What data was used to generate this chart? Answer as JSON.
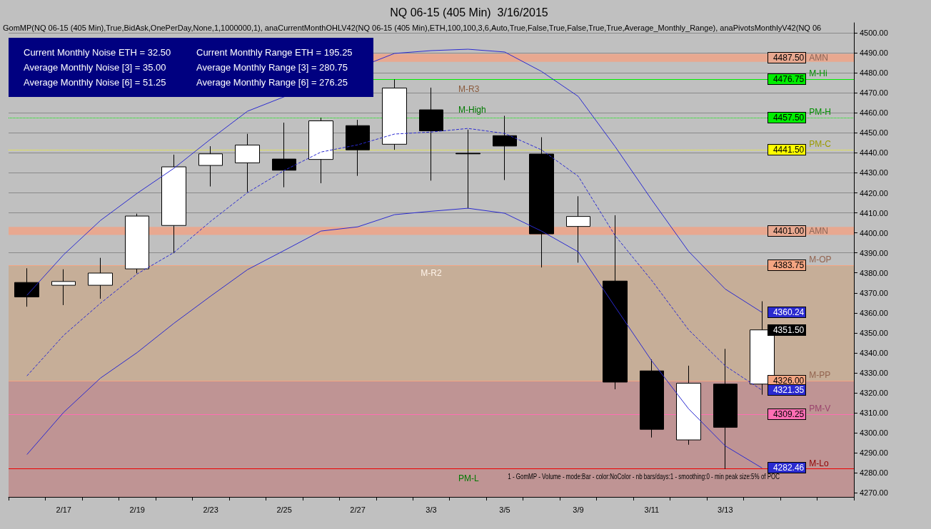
{
  "chart_data": {
    "type": "candlestick",
    "title": "NQ 06-15 (405 Min)  3/16/2015",
    "categories": [
      null,
      "2/17",
      null,
      "2/19",
      null,
      "2/23",
      null,
      "2/25",
      null,
      "2/27",
      null,
      "3/3",
      null,
      "3/5",
      null,
      "3/9",
      null,
      "3/11",
      null,
      "3/13",
      null
    ],
    "ohlc": [
      [
        4375.2,
        4382.3,
        4363.1,
        4368.0
      ],
      [
        4373.8,
        4381.8,
        4363.9,
        4375.7
      ],
      [
        4373.8,
        4387.5,
        4367.1,
        4379.9
      ],
      [
        4382.0,
        4409.6,
        4379.8,
        4408.4
      ],
      [
        4403.7,
        4439.1,
        4389.8,
        4433.0
      ],
      [
        4433.7,
        4443.3,
        4423.2,
        4439.5
      ],
      [
        4435.0,
        4449.5,
        4420.4,
        4443.9
      ],
      [
        4436.9,
        4455.1,
        4422.8,
        4431.3
      ],
      [
        4436.7,
        4457.5,
        4424.8,
        4456.0
      ],
      [
        4453.6,
        4456.5,
        4428.5,
        4441.5
      ],
      [
        4444.3,
        4476.75,
        4441.5,
        4472.4
      ],
      [
        4461.5,
        4472.6,
        4426.1,
        4451.0
      ],
      [
        4439.8,
        4451.6,
        4412.2,
        4439.5
      ],
      [
        4448.6,
        4458.5,
        4426.4,
        4443.4
      ],
      [
        4439.4,
        4447.8,
        4382.7,
        4399.5
      ],
      [
        4403.2,
        4418.3,
        4385.1,
        4408.2
      ],
      [
        4375.9,
        4408.8,
        4321.8,
        4325.4
      ],
      [
        4331.0,
        4336.7,
        4297.7,
        4301.8
      ],
      [
        4296.5,
        4333.6,
        4294.1,
        4324.8
      ],
      [
        4324.4,
        4342.0,
        4282.0,
        4302.8
      ],
      [
        4324.4,
        4365.8,
        4319.1,
        4351.5
      ]
    ],
    "series": [
      {
        "type": "line",
        "color": "#2a2ad0",
        "line_style": "solid",
        "values": [
          4368.8,
          4389.1,
          4406.2,
          4419.8,
          4432.3,
          4446.9,
          4460.8,
          null,
          null,
          null,
          4489.7,
          4491.1,
          4491.8,
          4490.4,
          4480.7,
          4468.2,
          4443.2,
          4416.5,
          4390.8,
          4371.9,
          4360.24
        ],
        "value_labels": [
          null,
          null,
          null,
          null,
          null,
          null,
          null,
          null,
          null,
          null,
          null,
          null,
          null,
          null,
          null,
          null,
          null,
          null,
          null,
          null,
          "4360.24"
        ]
      },
      {
        "type": "line",
        "color": "#2a2ad0",
        "line_style": "dashed",
        "values": [
          4328.5,
          4348.8,
          4364.8,
          4379.5,
          4390.2,
          4405.8,
          4420.1,
          4431.2,
          4440.4,
          4444.0,
          4449.4,
          4450.4,
          4452.2,
          4449.7,
          4441.5,
          4428.3,
          4398.7,
          4376.2,
          4351.6,
          4333.5,
          4321.35
        ],
        "value_labels": [
          null,
          null,
          null,
          null,
          null,
          null,
          null,
          null,
          null,
          null,
          null,
          null,
          null,
          null,
          null,
          null,
          null,
          null,
          null,
          null,
          "4321.35"
        ]
      },
      {
        "type": "line",
        "color": "#2a2ad0",
        "line_style": "solid",
        "values": [
          4289.2,
          4310.3,
          4327.4,
          4340.2,
          4354.8,
          4368.4,
          4381.6,
          4391.2,
          4400.9,
          4403.0,
          4409.1,
          4410.8,
          4412.3,
          4409.8,
          4400.9,
          4390.5,
          4363.1,
          4336.0,
          4312.1,
          4293.5,
          4282.46
        ],
        "value_labels": [
          null,
          null,
          null,
          null,
          null,
          null,
          null,
          null,
          null,
          null,
          null,
          null,
          null,
          null,
          null,
          null,
          null,
          null,
          null,
          null,
          "4282.46"
        ]
      }
    ],
    "marker": "none",
    "grid": "y",
    "ylim": [
      4268,
      4505
    ],
    "yticks": [
      {
        "value": 4270,
        "label": "4270.00"
      },
      {
        "value": 4280,
        "label": "4280.00"
      },
      {
        "value": 4290,
        "label": "4290.00"
      },
      {
        "value": 4300,
        "label": "4300.00"
      },
      {
        "value": 4310,
        "label": "4310.00"
      },
      {
        "value": 4320,
        "label": "4320.00"
      },
      {
        "value": 4330,
        "label": "4330.00"
      },
      {
        "value": 4340,
        "label": "4340.00"
      },
      {
        "value": 4350,
        "label": "4350.00"
      },
      {
        "value": 4360,
        "label": "4360.00"
      },
      {
        "value": 4370,
        "label": "4370.00"
      },
      {
        "value": 4380,
        "label": "4380.00"
      },
      {
        "value": 4390,
        "label": "4390.00"
      },
      {
        "value": 4400,
        "label": "4400.00"
      },
      {
        "value": 4410,
        "label": "4410.00"
      },
      {
        "value": 4420,
        "label": "4420.00"
      },
      {
        "value": 4430,
        "label": "4430.00"
      },
      {
        "value": 4440,
        "label": "4440.00"
      },
      {
        "value": 4450,
        "label": "4450.00"
      },
      {
        "value": 4460,
        "label": "4460.00"
      },
      {
        "value": 4470,
        "label": "4470.00"
      },
      {
        "value": 4480,
        "label": "4480.00"
      },
      {
        "value": 4490,
        "label": "4490.00"
      },
      {
        "value": 4500,
        "label": "4500.00"
      }
    ],
    "bands": [
      {
        "axis": "y",
        "from": 4485.5,
        "to": 4489.5,
        "label": "AMN",
        "color": "#e8a890"
      },
      {
        "axis": "y",
        "from": 4399.0,
        "to": 4403.0,
        "label": "AMN",
        "color": "#e8a890"
      },
      {
        "axis": "y",
        "from": 4326.0,
        "to": 4383.75,
        "label": "M-R2",
        "color": "#c6ae98"
      },
      {
        "axis": "y",
        "from": 4268,
        "to": 4326.0,
        "label": null,
        "color": "#bf9494"
      }
    ],
    "ref_lines": [
      {
        "axis": "y",
        "value": 4476.75,
        "label": "M-Hi",
        "color": "#00ee00",
        "line_style": "solid"
      },
      {
        "axis": "y",
        "value": 4457.5,
        "label": "PM-H",
        "color": "#00ee00",
        "line_style": "dotted"
      },
      {
        "axis": "y",
        "value": 4441.5,
        "label": "PM-C",
        "color": "#ffff00",
        "line_style": "dotted"
      },
      {
        "axis": "y",
        "value": 4383.75,
        "label": "M-OP",
        "color": "#f4a582",
        "line_style": "solid"
      },
      {
        "axis": "y",
        "value": 4326.0,
        "label": "M-PP",
        "color": "#f4a582",
        "line_style": "solid"
      },
      {
        "axis": "y",
        "value": 4309.25,
        "label": "PM-V",
        "color": "#ff6eb4",
        "line_style": "solid"
      },
      {
        "axis": "y",
        "value": 4282.0,
        "label": "M-Lo",
        "color": "#ee0000",
        "line_style": "solid"
      }
    ],
    "annotations": [
      "GomMP(NQ 06-15 (405 Min),True,BidAsk,OnePerDay,None,1,1000000,1), anaCurrentMonthOHLV42(NQ 06-15 (405 Min),ETH,100,100,3,6,Auto,True,False,True,False,True,True,Average_Monthly_Range), anaPivotsMonthlyV42(NQ 06",
      "Current Monthly Noise ETH = 32.50",
      "Current Monthly Range ETH = 195.25",
      "Average Monthly Noise [3] = 35.00",
      "Average Monthly Range [3] = 280.75",
      "Average Monthly Noise [6] = 51.25",
      "Average Monthly Range [6] = 276.25",
      "1 - GomMP - Volume - mode:Bar - color:NoColor - nb bars/days:1 - smoothing:0 - min peak size:5% of POC",
      "M-R3",
      "M-High",
      "PM-L",
      "4487.50",
      "4401.00",
      "4351.50",
      {
        "text": "4476.75",
        "y": 4476.75
      },
      {
        "text": "4457.50",
        "y": 4457.5
      },
      {
        "text": "4441.50",
        "y": 4441.5
      },
      {
        "text": "4383.75",
        "y": 4383.75
      },
      {
        "text": "4326.00",
        "y": 4326.0
      },
      {
        "text": "4309.25",
        "y": 4309.25
      }
    ]
  }
}
